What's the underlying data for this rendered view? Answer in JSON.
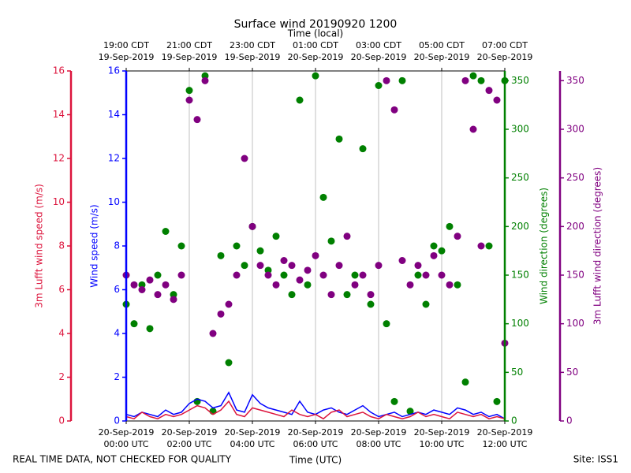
{
  "chart_data": {
    "type": "multi-axis-time",
    "title": "Surface wind 20190920 1200",
    "top_xlabel": "Time (local)",
    "xlabel": "Time (UTC)",
    "footer_left": "REAL TIME DATA, NOT CHECKED FOR QUALITY",
    "footer_right": "Site: ISS1",
    "ylabel": "Wind speed (m/s)",
    "ylim": [
      0,
      16
    ],
    "yticks": [
      0,
      2,
      4,
      6,
      8,
      10,
      12,
      14,
      16
    ],
    "ycolor": "#0000ff",
    "y2label": "Wind direction (degrees)",
    "y2lim": [
      0,
      360
    ],
    "y2ticks": [
      0,
      50,
      100,
      150,
      200,
      250,
      300,
      350
    ],
    "y2color": "#008000",
    "y3label": "3m Lufft wind speed (m/s)",
    "y3lim": [
      0,
      16
    ],
    "y3ticks": [
      0,
      2,
      4,
      6,
      8,
      10,
      12,
      14,
      16
    ],
    "y3color": "#dc143c",
    "y4label": "3m Lufft wind direction (degrees)",
    "y4lim": [
      0,
      360
    ],
    "y4ticks": [
      0,
      50,
      100,
      150,
      200,
      250,
      300,
      350
    ],
    "y4color": "#800080",
    "grid": true,
    "xlim": [
      "2019-09-20 00:00",
      "2019-09-20 12:00"
    ],
    "xticks": [
      {
        "value": "2019-09-20 00:00",
        "label": [
          "20-Sep-2019",
          "00:00 UTC"
        ]
      },
      {
        "value": "2019-09-20 02:00",
        "label": [
          "20-Sep-2019",
          "02:00 UTC"
        ]
      },
      {
        "value": "2019-09-20 04:00",
        "label": [
          "20-Sep-2019",
          "04:00 UTC"
        ]
      },
      {
        "value": "2019-09-20 06:00",
        "label": [
          "20-Sep-2019",
          "06:00 UTC"
        ]
      },
      {
        "value": "2019-09-20 08:00",
        "label": [
          "20-Sep-2019",
          "08:00 UTC"
        ]
      },
      {
        "value": "2019-09-20 10:00",
        "label": [
          "20-Sep-2019",
          "10:00 UTC"
        ]
      },
      {
        "value": "2019-09-20 12:00",
        "label": [
          "20-Sep-2019",
          "12:00 UTC"
        ]
      }
    ],
    "top_xticks": [
      {
        "value": "2019-09-20 00:00",
        "label": [
          "19:00 CDT",
          "19-Sep-2019"
        ]
      },
      {
        "value": "2019-09-20 02:00",
        "label": [
          "21:00 CDT",
          "19-Sep-2019"
        ]
      },
      {
        "value": "2019-09-20 04:00",
        "label": [
          "23:00 CDT",
          "19-Sep-2019"
        ]
      },
      {
        "value": "2019-09-20 06:00",
        "label": [
          "01:00 CDT",
          "20-Sep-2019"
        ]
      },
      {
        "value": "2019-09-20 08:00",
        "label": [
          "03:00 CDT",
          "20-Sep-2019"
        ]
      },
      {
        "value": "2019-09-20 10:00",
        "label": [
          "05:00 CDT",
          "20-Sep-2019"
        ]
      },
      {
        "value": "2019-09-20 12:00",
        "label": [
          "07:00 CDT",
          "20-Sep-2019"
        ]
      }
    ],
    "x": [
      "2019-09-20 00:00",
      "2019-09-20 00:15",
      "2019-09-20 00:30",
      "2019-09-20 00:45",
      "2019-09-20 01:00",
      "2019-09-20 01:15",
      "2019-09-20 01:30",
      "2019-09-20 01:45",
      "2019-09-20 02:00",
      "2019-09-20 02:15",
      "2019-09-20 02:30",
      "2019-09-20 02:45",
      "2019-09-20 03:00",
      "2019-09-20 03:15",
      "2019-09-20 03:30",
      "2019-09-20 03:45",
      "2019-09-20 04:00",
      "2019-09-20 04:15",
      "2019-09-20 04:30",
      "2019-09-20 04:45",
      "2019-09-20 05:00",
      "2019-09-20 05:15",
      "2019-09-20 05:30",
      "2019-09-20 05:45",
      "2019-09-20 06:00",
      "2019-09-20 06:15",
      "2019-09-20 06:30",
      "2019-09-20 06:45",
      "2019-09-20 07:00",
      "2019-09-20 07:15",
      "2019-09-20 07:30",
      "2019-09-20 07:45",
      "2019-09-20 08:00",
      "2019-09-20 08:15",
      "2019-09-20 08:30",
      "2019-09-20 08:45",
      "2019-09-20 09:00",
      "2019-09-20 09:15",
      "2019-09-20 09:30",
      "2019-09-20 09:45",
      "2019-09-20 10:00",
      "2019-09-20 10:15",
      "2019-09-20 10:30",
      "2019-09-20 10:45",
      "2019-09-20 11:00",
      "2019-09-20 11:15",
      "2019-09-20 11:30",
      "2019-09-20 11:45",
      "2019-09-20 12:00"
    ],
    "series": [
      {
        "name": "Wind direction",
        "kind": "scatter",
        "axis": "y2",
        "color": "#008000",
        "values": [
          120,
          100,
          140,
          95,
          150,
          195,
          130,
          180,
          340,
          20,
          355,
          10,
          170,
          60,
          180,
          160,
          200,
          175,
          155,
          190,
          150,
          130,
          330,
          140,
          355,
          230,
          185,
          290,
          130,
          150,
          280,
          120,
          345,
          100,
          20,
          350,
          10,
          150,
          120,
          180,
          175,
          200,
          140,
          40,
          355,
          350,
          180,
          20,
          350
        ]
      },
      {
        "name": "3m Lufft wind direction",
        "kind": "scatter",
        "axis": "y4",
        "color": "#800080",
        "values": [
          150,
          140,
          135,
          145,
          130,
          140,
          125,
          150,
          330,
          310,
          350,
          90,
          110,
          120,
          150,
          270,
          200,
          160,
          150,
          140,
          165,
          160,
          145,
          155,
          170,
          150,
          130,
          160,
          190,
          140,
          150,
          130,
          160,
          350,
          320,
          165,
          140,
          160,
          150,
          170,
          150,
          140,
          190,
          350,
          300,
          180,
          340,
          330,
          80
        ]
      },
      {
        "name": "Wind speed",
        "kind": "line",
        "axis": "y",
        "color": "#0000ff",
        "values": [
          0.3,
          0.2,
          0.4,
          0.3,
          0.2,
          0.5,
          0.3,
          0.4,
          0.8,
          1.0,
          0.9,
          0.6,
          0.7,
          1.3,
          0.5,
          0.4,
          1.2,
          0.8,
          0.6,
          0.5,
          0.4,
          0.3,
          0.9,
          0.4,
          0.3,
          0.5,
          0.6,
          0.4,
          0.3,
          0.5,
          0.7,
          0.4,
          0.2,
          0.3,
          0.4,
          0.2,
          0.3,
          0.4,
          0.3,
          0.5,
          0.4,
          0.3,
          0.6,
          0.5,
          0.3,
          0.4,
          0.2,
          0.3,
          0.1
        ]
      },
      {
        "name": "3m Lufft wind speed",
        "kind": "line",
        "axis": "y3",
        "color": "#dc143c",
        "values": [
          0.2,
          0.1,
          0.4,
          0.2,
          0.1,
          0.3,
          0.2,
          0.3,
          0.5,
          0.7,
          0.6,
          0.3,
          0.5,
          0.9,
          0.3,
          0.2,
          0.6,
          0.5,
          0.4,
          0.3,
          0.2,
          0.5,
          0.3,
          0.2,
          0.3,
          0.1,
          0.4,
          0.5,
          0.2,
          0.3,
          0.4,
          0.2,
          0.1,
          0.3,
          0.2,
          0.1,
          0.2,
          0.4,
          0.2,
          0.3,
          0.2,
          0.1,
          0.4,
          0.3,
          0.2,
          0.3,
          0.1,
          0.2,
          0.1
        ]
      }
    ]
  }
}
